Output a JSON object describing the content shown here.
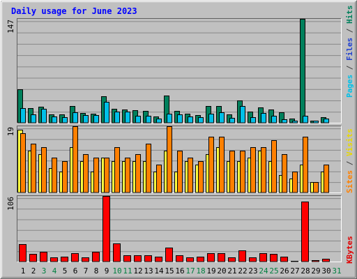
{
  "title": "Daily usage for June 2023",
  "legend": {
    "top": [
      {
        "text": "Pages",
        "color": "#00c0e8"
      },
      {
        "text": " / ",
        "color": "#404040"
      },
      {
        "text": "Files",
        "color": "#2040d0"
      },
      {
        "text": " / ",
        "color": "#404040"
      },
      {
        "text": "Hits",
        "color": "#00805c"
      }
    ],
    "mid": [
      {
        "text": "Sites",
        "color": "#ff8000"
      },
      {
        "text": " / ",
        "color": "#404040"
      },
      {
        "text": "Visits",
        "color": "#e8d800"
      }
    ],
    "bottom": [
      {
        "text": "KBytes",
        "color": "#e00000"
      }
    ]
  },
  "colors": {
    "hits": "#00805c",
    "pages": "#00c0e8",
    "sites": "#ff8000",
    "visits": "#ffff40",
    "kbytes": "#ff0000",
    "panel_bg": "#c0c0c0",
    "weekday_label": "#000000",
    "weekend_label": "#008040"
  },
  "chart_data": [
    {
      "type": "bar",
      "ylabel": "147",
      "ymax": 147,
      "x": [
        1,
        2,
        3,
        4,
        5,
        6,
        7,
        8,
        9,
        10,
        11,
        12,
        13,
        14,
        15,
        16,
        17,
        18,
        19,
        20,
        21,
        22,
        23,
        24,
        25,
        26,
        27,
        28,
        29,
        30
      ],
      "series": [
        {
          "name": "Hits",
          "values": [
            47,
            21,
            23,
            12,
            12,
            24,
            14,
            13,
            37,
            20,
            19,
            18,
            17,
            9,
            38,
            17,
            13,
            11,
            24,
            24,
            12,
            32,
            16,
            22,
            19,
            15,
            6,
            147,
            3,
            8
          ]
        },
        {
          "name": "Files",
          "values": [
            0,
            0,
            0,
            0,
            0,
            0,
            0,
            0,
            0,
            0,
            0,
            0,
            0,
            0,
            0,
            0,
            0,
            0,
            0,
            0,
            0,
            0,
            0,
            0,
            0,
            0,
            0,
            0,
            0,
            0
          ]
        },
        {
          "name": "Pages",
          "values": [
            21,
            12,
            20,
            9,
            8,
            15,
            11,
            11,
            30,
            16,
            16,
            10,
            10,
            6,
            13,
            12,
            9,
            8,
            13,
            15,
            7,
            24,
            8,
            14,
            10,
            5,
            3,
            10,
            3,
            6
          ]
        }
      ]
    },
    {
      "type": "bar",
      "ylabel": "19",
      "ymax": 19,
      "x": [
        1,
        2,
        3,
        4,
        5,
        6,
        7,
        8,
        9,
        10,
        11,
        12,
        13,
        14,
        15,
        16,
        17,
        18,
        19,
        20,
        21,
        22,
        23,
        24,
        25,
        26,
        27,
        28,
        29,
        30
      ],
      "series": [
        {
          "name": "Visits",
          "values": [
            18,
            12,
            11,
            7,
            6,
            13,
            9,
            6,
            10,
            9,
            9,
            9,
            9,
            6,
            12,
            6,
            9,
            8,
            11,
            13,
            9,
            9,
            10,
            12,
            9,
            5,
            4,
            8,
            3,
            6
          ]
        },
        {
          "name": "Sites",
          "values": [
            17,
            14,
            13,
            10,
            9,
            19,
            11,
            10,
            10,
            13,
            10,
            11,
            14,
            8,
            19,
            12,
            10,
            9,
            16,
            16,
            12,
            12,
            13,
            13,
            15,
            11,
            6,
            16,
            3,
            8
          ]
        }
      ]
    },
    {
      "type": "bar",
      "ylabel": "106",
      "ymax": 106,
      "x": [
        1,
        2,
        3,
        4,
        5,
        6,
        7,
        8,
        9,
        10,
        11,
        12,
        13,
        14,
        15,
        16,
        17,
        18,
        19,
        20,
        21,
        22,
        23,
        24,
        25,
        26,
        27,
        28,
        29,
        30
      ],
      "series": [
        {
          "name": "KBytes",
          "values": [
            28,
            12,
            16,
            7,
            8,
            14,
            7,
            16,
            106,
            29,
            10,
            10,
            10,
            8,
            22,
            10,
            7,
            8,
            14,
            14,
            7,
            18,
            7,
            13,
            12,
            8,
            1,
            97,
            2,
            4
          ]
        }
      ]
    }
  ],
  "xlabels": [
    "1",
    "2",
    "3",
    "4",
    "5",
    "6",
    "7",
    "8",
    "9",
    "10",
    "11",
    "12",
    "13",
    "14",
    "15",
    "16",
    "17",
    "18",
    "19",
    "20",
    "21",
    "22",
    "23",
    "24",
    "25",
    "26",
    "27",
    "28",
    "29",
    "30",
    "31"
  ],
  "weekend_days": [
    3,
    4,
    10,
    11,
    17,
    18,
    24,
    25,
    31
  ]
}
